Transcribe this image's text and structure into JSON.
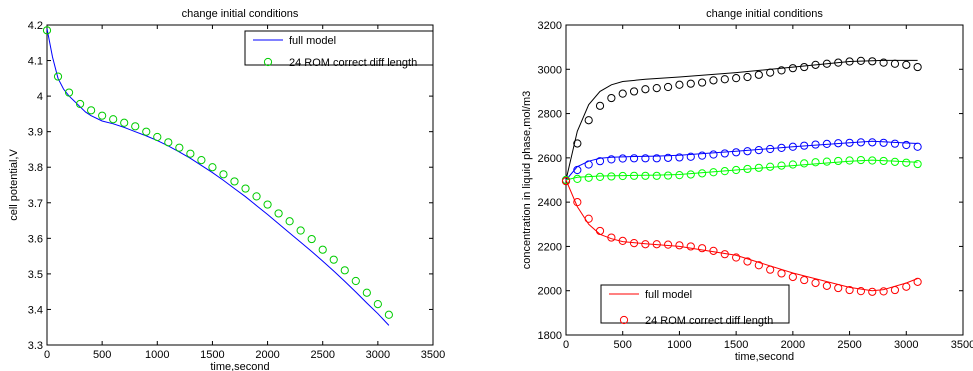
{
  "chart_data": [
    {
      "id": "left",
      "type": "line",
      "title": "change initial conditions",
      "xlabel": "time,second",
      "ylabel": "cell potential,V",
      "xlim": [
        0,
        3500
      ],
      "ylim": [
        3.3,
        4.2
      ],
      "xticks": [
        0,
        500,
        1000,
        1500,
        2000,
        2500,
        3000,
        3500
      ],
      "yticks": [
        3.3,
        3.4,
        3.5,
        3.6,
        3.7,
        3.8,
        3.9,
        4.0,
        4.1,
        4.2
      ],
      "ytick_labels": [
        "3.3",
        "3.4",
        "3.5",
        "3.6",
        "3.7",
        "3.8",
        "3.9",
        "4",
        "4.1",
        "4.2"
      ],
      "grid": false,
      "legend": {
        "placement": "top-right",
        "entries": [
          {
            "label": "full model",
            "style": "line",
            "color": "#0000ff"
          },
          {
            "label": "24 ROM correct diff length",
            "style": "marker",
            "color": "#00cc00"
          }
        ]
      },
      "series": [
        {
          "name": "full model",
          "style": "line",
          "color": "#0000ff",
          "x": [
            0,
            50,
            100,
            150,
            200,
            250,
            300,
            350,
            400,
            500,
            600,
            700,
            800,
            900,
            1000,
            1100,
            1200,
            1300,
            1400,
            1500,
            1600,
            1700,
            1800,
            1900,
            2000,
            2100,
            2200,
            2300,
            2400,
            2500,
            2600,
            2700,
            2800,
            2900,
            3000,
            3100
          ],
          "y": [
            4.19,
            4.11,
            4.05,
            4.02,
            4.0,
            3.985,
            3.97,
            3.955,
            3.945,
            3.93,
            3.922,
            3.912,
            3.9,
            3.888,
            3.875,
            3.86,
            3.843,
            3.825,
            3.805,
            3.785,
            3.763,
            3.74,
            3.717,
            3.692,
            3.667,
            3.641,
            3.615,
            3.589,
            3.563,
            3.536,
            3.508,
            3.479,
            3.449,
            3.418,
            3.388,
            3.355
          ]
        },
        {
          "name": "24 ROM correct diff length",
          "style": "marker",
          "marker": "circle",
          "color": "#00cc00",
          "x": [
            0,
            100,
            200,
            300,
            400,
            500,
            600,
            700,
            800,
            900,
            1000,
            1100,
            1200,
            1300,
            1400,
            1500,
            1600,
            1700,
            1800,
            1900,
            2000,
            2100,
            2200,
            2300,
            2400,
            2500,
            2600,
            2700,
            2800,
            2900,
            3000,
            3100
          ],
          "y": [
            4.185,
            4.055,
            4.01,
            3.978,
            3.96,
            3.945,
            3.935,
            3.925,
            3.915,
            3.9,
            3.885,
            3.87,
            3.855,
            3.838,
            3.82,
            3.8,
            3.78,
            3.76,
            3.74,
            3.718,
            3.695,
            3.67,
            3.648,
            3.622,
            3.598,
            3.568,
            3.54,
            3.51,
            3.48,
            3.447,
            3.415,
            3.385
          ]
        }
      ]
    },
    {
      "id": "right",
      "type": "line",
      "title": "change initial conditions",
      "xlabel": "time,second",
      "ylabel": "concentration in liquid phase,mol/m3",
      "xlim": [
        0,
        3500
      ],
      "ylim": [
        1800,
        3200
      ],
      "xticks": [
        0,
        500,
        1000,
        1500,
        2000,
        2500,
        3000,
        3500
      ],
      "yticks": [
        1800,
        2000,
        2200,
        2400,
        2600,
        2800,
        3000,
        3200
      ],
      "ytick_labels": [
        "1800",
        "2000",
        "2200",
        "2400",
        "2600",
        "2800",
        "3000",
        "3200"
      ],
      "grid": false,
      "legend": {
        "placement": "bottom-left",
        "entries": [
          {
            "label": "full model",
            "style": "line",
            "color": "#ff0000"
          },
          {
            "label": "24 ROM correct diff length",
            "style": "marker",
            "color": "#ff0000"
          }
        ]
      },
      "series": [
        {
          "style": "line",
          "color": "#000000",
          "x": [
            0,
            100,
            200,
            300,
            400,
            500,
            700,
            1000,
            1500,
            2000,
            2500,
            2800,
            3100
          ],
          "y": [
            2500,
            2720,
            2840,
            2900,
            2930,
            2945,
            2955,
            2965,
            2985,
            3010,
            3035,
            3040,
            3040
          ]
        },
        {
          "style": "marker",
          "marker": "circle",
          "color": "#000000",
          "x": [
            0,
            100,
            200,
            300,
            400,
            500,
            600,
            700,
            800,
            900,
            1000,
            1100,
            1200,
            1300,
            1400,
            1500,
            1600,
            1700,
            1800,
            1900,
            2000,
            2100,
            2200,
            2300,
            2400,
            2500,
            2600,
            2700,
            2800,
            2900,
            3000,
            3100
          ],
          "y": [
            2495,
            2665,
            2770,
            2835,
            2870,
            2890,
            2900,
            2910,
            2915,
            2920,
            2930,
            2935,
            2940,
            2950,
            2955,
            2960,
            2965,
            2975,
            2985,
            2995,
            3005,
            3010,
            3020,
            3025,
            3030,
            3035,
            3038,
            3036,
            3030,
            3025,
            3020,
            3010
          ]
        },
        {
          "style": "line",
          "color": "#0000ff",
          "x": [
            0,
            100,
            200,
            300,
            400,
            600,
            800,
            1000,
            1500,
            2000,
            2500,
            2700,
            3100
          ],
          "y": [
            2500,
            2560,
            2585,
            2598,
            2603,
            2606,
            2608,
            2612,
            2630,
            2650,
            2668,
            2675,
            2665
          ]
        },
        {
          "style": "marker",
          "marker": "circle",
          "color": "#0000ff",
          "x": [
            0,
            100,
            200,
            300,
            400,
            500,
            600,
            700,
            800,
            900,
            1000,
            1100,
            1200,
            1300,
            1400,
            1500,
            1600,
            1700,
            1800,
            1900,
            2000,
            2100,
            2200,
            2300,
            2400,
            2500,
            2600,
            2700,
            2800,
            2900,
            3000,
            3100
          ],
          "y": [
            2500,
            2545,
            2570,
            2585,
            2593,
            2597,
            2598,
            2598,
            2598,
            2600,
            2602,
            2605,
            2610,
            2615,
            2620,
            2625,
            2630,
            2635,
            2640,
            2645,
            2650,
            2655,
            2660,
            2663,
            2666,
            2668,
            2670,
            2670,
            2668,
            2664,
            2658,
            2650
          ]
        },
        {
          "style": "line",
          "color": "#00ff00",
          "x": [
            0,
            100,
            300,
            500,
            800,
            1000,
            1500,
            2000,
            2500,
            2700,
            3100
          ],
          "y": [
            2500,
            2512,
            2518,
            2520,
            2522,
            2525,
            2545,
            2565,
            2585,
            2590,
            2580
          ]
        },
        {
          "style": "marker",
          "marker": "circle",
          "color": "#00ff00",
          "x": [
            0,
            100,
            200,
            300,
            400,
            500,
            600,
            700,
            800,
            900,
            1000,
            1100,
            1200,
            1300,
            1400,
            1500,
            1600,
            1700,
            1800,
            1900,
            2000,
            2100,
            2200,
            2300,
            2400,
            2500,
            2600,
            2700,
            2800,
            2900,
            3000,
            3100
          ],
          "y": [
            2500,
            2505,
            2510,
            2514,
            2516,
            2518,
            2519,
            2519,
            2519,
            2520,
            2522,
            2525,
            2530,
            2535,
            2540,
            2545,
            2550,
            2555,
            2560,
            2565,
            2570,
            2575,
            2580,
            2583,
            2586,
            2588,
            2590,
            2588,
            2586,
            2582,
            2578,
            2572
          ]
        },
        {
          "name": "full model",
          "style": "line",
          "color": "#ff0000",
          "x": [
            0,
            100,
            200,
            300,
            400,
            500,
            700,
            1000,
            1500,
            2000,
            2500,
            2700,
            2800,
            3000,
            3100
          ],
          "y": [
            2500,
            2380,
            2300,
            2255,
            2235,
            2222,
            2212,
            2200,
            2160,
            2080,
            2015,
            2000,
            2005,
            2035,
            2055
          ]
        },
        {
          "name": "24 ROM correct diff length",
          "style": "marker",
          "marker": "circle",
          "color": "#ff0000",
          "x": [
            0,
            100,
            200,
            300,
            400,
            500,
            600,
            700,
            800,
            900,
            1000,
            1100,
            1200,
            1300,
            1400,
            1500,
            1600,
            1700,
            1800,
            1900,
            2000,
            2100,
            2200,
            2300,
            2400,
            2500,
            2600,
            2700,
            2800,
            2900,
            3000,
            3100
          ],
          "y": [
            2495,
            2400,
            2325,
            2270,
            2240,
            2225,
            2215,
            2210,
            2210,
            2208,
            2205,
            2200,
            2192,
            2180,
            2165,
            2150,
            2132,
            2115,
            2095,
            2078,
            2062,
            2048,
            2035,
            2022,
            2012,
            2003,
            1998,
            1995,
            1997,
            2003,
            2018,
            2040
          ]
        }
      ]
    }
  ]
}
